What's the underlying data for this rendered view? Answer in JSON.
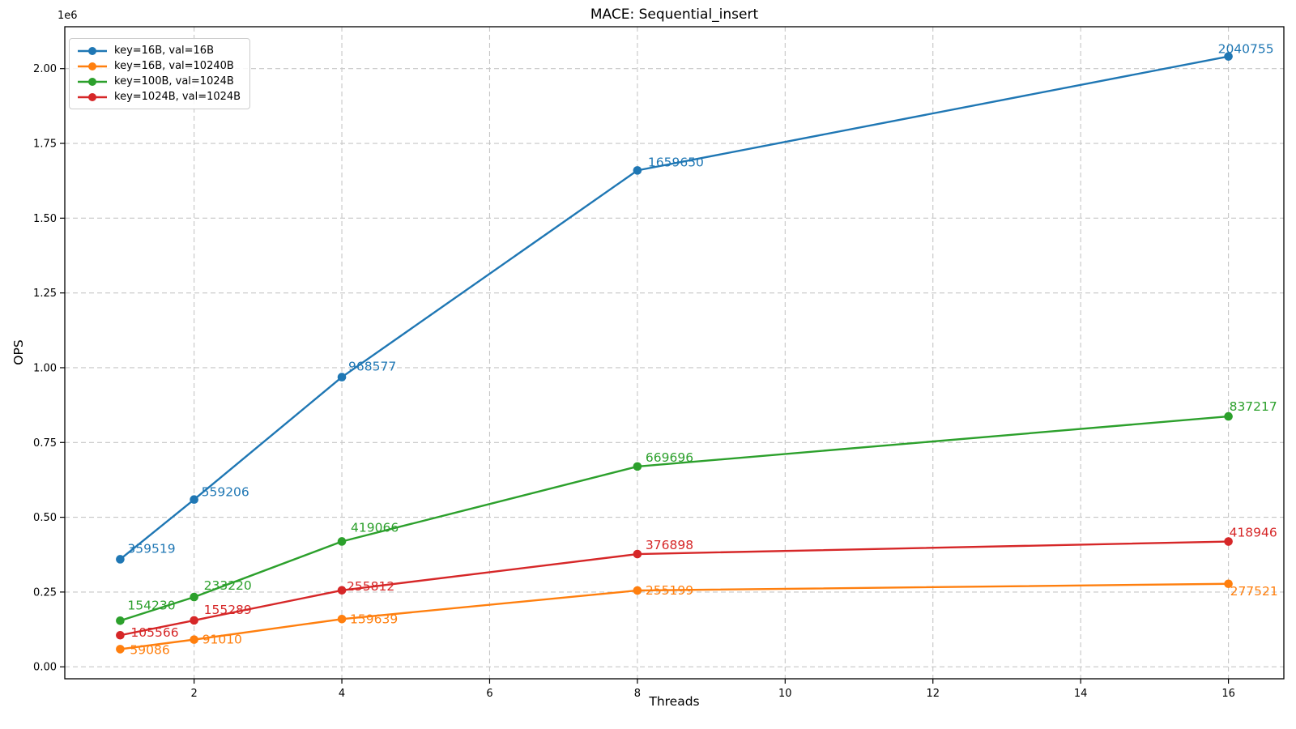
{
  "chart_data": {
    "type": "line",
    "title": "MACE: Sequential_insert",
    "xlabel": "Threads",
    "ylabel": "OPS",
    "y_offset_text": "1e6",
    "x": [
      1,
      2,
      4,
      8,
      16
    ],
    "series": [
      {
        "name": "key=16B, val=16B",
        "color": "#1f77b4",
        "values": [
          359519,
          559206,
          968577,
          1659650,
          2040755
        ]
      },
      {
        "name": "key=16B, val=10240B",
        "color": "#ff7f0e",
        "values": [
          59086,
          91010,
          159639,
          255199,
          277521
        ]
      },
      {
        "name": "key=100B, val=1024B",
        "color": "#2ca02c",
        "values": [
          154230,
          233220,
          419066,
          669696,
          837217
        ]
      },
      {
        "name": "key=1024B, val=1024B",
        "color": "#d62728",
        "values": [
          105566,
          155289,
          255812,
          376898,
          418946
        ]
      }
    ],
    "xticks": [
      2,
      4,
      6,
      8,
      10,
      12,
      14,
      16
    ],
    "yticks": [
      0,
      250000,
      500000,
      750000,
      1000000,
      1250000,
      1500000,
      1750000,
      2000000
    ],
    "ytick_labels": [
      "0.00",
      "0.25",
      "0.50",
      "0.75",
      "1.00",
      "1.25",
      "1.50",
      "1.75",
      "2.00"
    ],
    "xlim": [
      0.25,
      16.75
    ],
    "ylim": [
      -40000,
      2140000
    ],
    "grid": true,
    "legend_position": "upper left",
    "point_labels_visible": true,
    "label_offsets": [
      [
        [
          9,
          -8
        ],
        [
          9,
          -4
        ],
        [
          8,
          -8
        ],
        [
          13,
          -5
        ],
        [
          -13,
          -4
        ]
      ],
      [
        [
          12,
          6
        ],
        [
          10,
          5
        ],
        [
          10,
          5
        ],
        [
          10,
          5
        ],
        [
          2,
          14
        ]
      ],
      [
        [
          9,
          -14
        ],
        [
          12,
          -9
        ],
        [
          11,
          -12
        ],
        [
          10,
          -6
        ],
        [
          1,
          -7
        ]
      ],
      [
        [
          13,
          2
        ],
        [
          12,
          -8
        ],
        [
          6,
          0
        ],
        [
          10,
          -6
        ],
        [
          1,
          -6
        ]
      ]
    ]
  }
}
